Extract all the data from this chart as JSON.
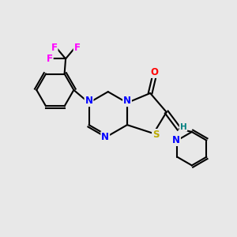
{
  "background_color": "#e8e8e8",
  "bond_color": "#000000",
  "bond_width": 1.5,
  "atom_colors": {
    "N": "#0000ff",
    "O": "#ff0000",
    "S": "#bbaa00",
    "F": "#ff00ff",
    "H": "#008080",
    "C": "#000000"
  },
  "font_size": 8.5
}
